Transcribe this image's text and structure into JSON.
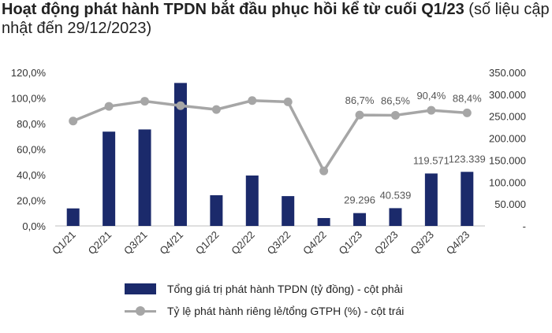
{
  "title": {
    "bold": "Hoạt động phát hành TPDN bắt đầu phục hồi kể từ cuối Q1/23",
    "normal": " (số liệu cập nhật đến 29/12/2023)"
  },
  "chart_data": {
    "type": "bar",
    "categories": [
      "Q1/21",
      "Q2/21",
      "Q3/21",
      "Q4/21",
      "Q1/22",
      "Q2/22",
      "Q3/22",
      "Q4/22",
      "Q1/23",
      "Q2/23",
      "Q3/23",
      "Q4/23"
    ],
    "series": [
      {
        "name": "Tổng giá trị phát hành TPDN (tỷ đồng) - cột phải",
        "type": "bar",
        "axis": "right",
        "color": "#1b2a6b",
        "values": [
          40000,
          215000,
          220000,
          326000,
          70000,
          115000,
          68000,
          18000,
          29296,
          40539,
          119571,
          123339
        ]
      },
      {
        "name": "Tỷ lệ phát hành riêng lẻ/tổng GTPH (%) - cột trái",
        "type": "line",
        "axis": "left",
        "color": "#a6a6a6",
        "values": [
          82,
          93.5,
          97.5,
          94,
          91,
          98,
          97,
          43,
          86.7,
          86.5,
          90.4,
          88.4
        ]
      }
    ],
    "data_labels": {
      "bars": [
        {
          "index": 8,
          "text": "29.296"
        },
        {
          "index": 9,
          "text": "40.539"
        },
        {
          "index": 10,
          "text": "119.571"
        },
        {
          "index": 11,
          "text": "123.339"
        }
      ],
      "line": [
        {
          "index": 8,
          "text": "86,7%"
        },
        {
          "index": 9,
          "text": "86,5%"
        },
        {
          "index": 10,
          "text": "90,4%"
        },
        {
          "index": 11,
          "text": "88,4%"
        }
      ]
    },
    "left_axis": {
      "ticks": [
        "0,0%",
        "20,0%",
        "40,0%",
        "60,0%",
        "80,0%",
        "100,0%",
        "120,0%"
      ],
      "values": [
        0,
        20,
        40,
        60,
        80,
        100,
        120
      ],
      "ylim": [
        0,
        120
      ]
    },
    "right_axis": {
      "ticks": [
        "-",
        "50.000",
        "100.000",
        "150.000",
        "200.000",
        "250.000",
        "300.000",
        "350.000"
      ],
      "values": [
        0,
        50000,
        100000,
        150000,
        200000,
        250000,
        300000,
        350000
      ],
      "ylim": [
        0,
        350000
      ]
    },
    "grid": false,
    "legend_position": "bottom"
  }
}
